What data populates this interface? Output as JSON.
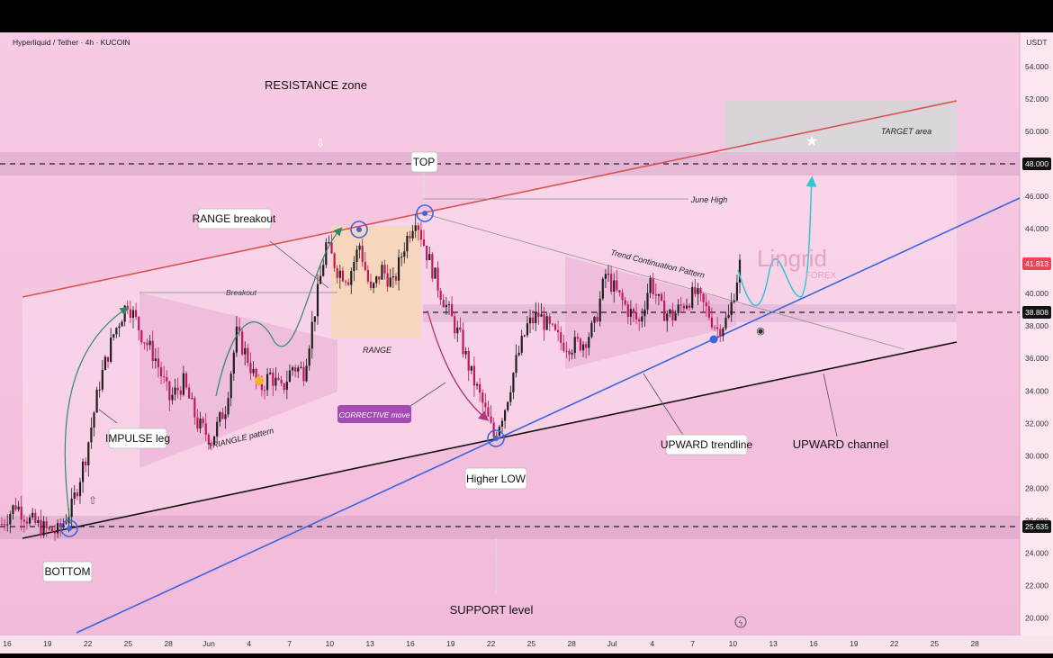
{
  "header": {
    "symbol": "Hyperliquid / Tether · 4h · KUCOIN",
    "currency": "USDT"
  },
  "annotations": {
    "resistance_zone": "RESISTANCE zone",
    "target_area": "TARGET area",
    "top": "TOP",
    "june_high": "June High",
    "range_breakout": "RANGE breakout",
    "breakout": "Breakout",
    "range": "RANGE",
    "trend_continuation": "Trend Continuation Pattern",
    "impulse_leg": "IMPULSE leg",
    "triangle_pattern": "TRIANGLE pattern",
    "corrective_move": "CORRECTIVE move",
    "higher_low": "Higher LOW",
    "upward_trendline": "UPWARD trendline",
    "upward_channel": "UPWARD channel",
    "bottom": "BOTTOM",
    "support_level": "SUPPORT level",
    "watermark": "Lingrid",
    "watermark_sub": "FOREX"
  },
  "price_tags": {
    "level_high": "48.000",
    "current": "41.813",
    "level_mid": "38.808",
    "level_low": "25.635"
  },
  "colors": {
    "accent_resistance": "#d9534f",
    "trendline": "#3a66e0",
    "channel_bottom": "#111111",
    "current_tag": "#e8475a",
    "projection": "#35c4d6",
    "corrective_box": "#a54bb5"
  },
  "chart_data": {
    "type": "candlestick",
    "title": "Hyperliquid / Tether · 4h · KUCOIN",
    "ylabel": "USDT",
    "ylim": [
      19,
      55
    ],
    "yticks": [
      "54.000",
      "52.000",
      "50.000",
      "48.000",
      "46.000",
      "44.000",
      "42.000",
      "40.000",
      "38.000",
      "36.000",
      "34.000",
      "32.000",
      "30.000",
      "28.000",
      "26.000",
      "24.000",
      "22.000",
      "20.000"
    ],
    "xticks": [
      "16",
      "19",
      "22",
      "25",
      "28",
      "Jun",
      "4",
      "7",
      "10",
      "13",
      "16",
      "19",
      "22",
      "25",
      "28",
      "Jul",
      "4",
      "7",
      "10",
      "13",
      "16",
      "19",
      "22",
      "25",
      "28"
    ],
    "price_path": [
      [
        0,
        25.8
      ],
      [
        5,
        27.0
      ],
      [
        10,
        26.0
      ],
      [
        16,
        25.4
      ],
      [
        20,
        25.3
      ],
      [
        25,
        26.8
      ],
      [
        30,
        30.0
      ],
      [
        35,
        34.5
      ],
      [
        40,
        37.5
      ],
      [
        45,
        39.5
      ],
      [
        50,
        37.5
      ],
      [
        55,
        36.0
      ],
      [
        60,
        33.5
      ],
      [
        65,
        34.5
      ],
      [
        70,
        32.0
      ],
      [
        75,
        31.0
      ],
      [
        80,
        33.0
      ],
      [
        84,
        37.5
      ],
      [
        88,
        36.0
      ],
      [
        92,
        34.0
      ],
      [
        96,
        35.0
      ],
      [
        100,
        34.0
      ],
      [
        104,
        35.5
      ],
      [
        108,
        35.2
      ],
      [
        112,
        39.0
      ],
      [
        116,
        43.0
      ],
      [
        120,
        41.5
      ],
      [
        124,
        41.0
      ],
      [
        128,
        43.0
      ],
      [
        132,
        40.0
      ],
      [
        136,
        41.5
      ],
      [
        140,
        40.5
      ],
      [
        144,
        43.0
      ],
      [
        148,
        44.8
      ],
      [
        152,
        42.5
      ],
      [
        156,
        40.5
      ],
      [
        160,
        38.8
      ],
      [
        164,
        37.2
      ],
      [
        168,
        35.0
      ],
      [
        172,
        33.2
      ],
      [
        176,
        31.2
      ],
      [
        180,
        33.0
      ],
      [
        184,
        35.8
      ],
      [
        188,
        38.0
      ],
      [
        192,
        38.7
      ],
      [
        196,
        37.8
      ],
      [
        200,
        37.0
      ],
      [
        204,
        36.8
      ],
      [
        208,
        37.0
      ],
      [
        212,
        38.0
      ],
      [
        216,
        41.2
      ],
      [
        220,
        40.0
      ],
      [
        224,
        39.0
      ],
      [
        228,
        38.2
      ],
      [
        232,
        40.8
      ],
      [
        236,
        39.0
      ],
      [
        240,
        38.6
      ],
      [
        244,
        39.4
      ],
      [
        248,
        40.0
      ],
      [
        252,
        39.0
      ],
      [
        256,
        37.8
      ],
      [
        260,
        38.5
      ],
      [
        264,
        41.8
      ]
    ],
    "levels": [
      48.0,
      38.808,
      25.635
    ],
    "current_price": 41.813
  }
}
